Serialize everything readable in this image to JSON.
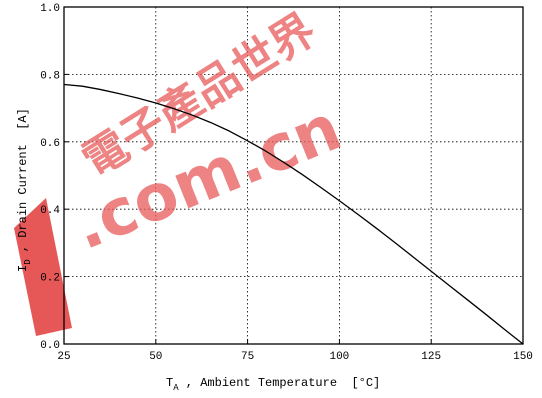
{
  "chart_data": {
    "type": "line",
    "title": "",
    "xlabel": {
      "symbol": "T",
      "subscript": "A",
      "text": " , Ambient Temperature  [°C]"
    },
    "ylabel": {
      "symbol": "I",
      "subscript": "D",
      "text": " , Drain Current  [A]"
    },
    "xlim": [
      25,
      150
    ],
    "ylim": [
      0.0,
      1.0
    ],
    "grid": true,
    "x_ticks": [
      25,
      50,
      75,
      100,
      125,
      150
    ],
    "x_tick_labels": [
      "25",
      "50",
      "75",
      "100",
      "125",
      "150"
    ],
    "y_ticks": [
      0.0,
      0.2,
      0.4,
      0.6,
      0.8,
      1.0
    ],
    "y_tick_labels": [
      "0.0",
      "0.2",
      "0.4",
      "0.6",
      "0.8",
      "1.0"
    ],
    "series": [
      {
        "color": "#000000",
        "x": [
          25,
          30,
          35,
          40,
          45,
          50,
          55,
          60,
          65,
          70,
          75,
          80,
          85,
          90,
          95,
          100,
          105,
          110,
          115,
          120,
          125,
          130,
          135,
          140,
          145,
          150
        ],
        "y": [
          0.77,
          0.765,
          0.755,
          0.743,
          0.73,
          0.715,
          0.698,
          0.679,
          0.657,
          0.632,
          0.603,
          0.572,
          0.538,
          0.502,
          0.464,
          0.425,
          0.385,
          0.344,
          0.302,
          0.259,
          0.216,
          0.173,
          0.13,
          0.087,
          0.043,
          0.0
        ]
      }
    ]
  },
  "watermark": {
    "text": ".com.cn",
    "glyphs": "電子產品世界",
    "color": "#e85a5a"
  }
}
